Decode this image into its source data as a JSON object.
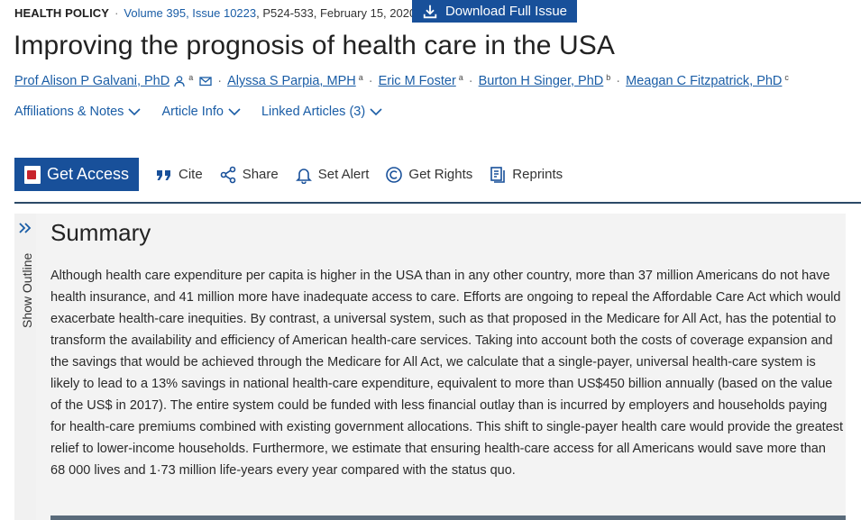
{
  "citation": {
    "section": "HEALTH POLICY",
    "separator": "·",
    "volume_issue": "Volume 395, Issue 10223",
    "pages_date": ", P524-533, February 15, 2020"
  },
  "download_button": {
    "label": "Download Full Issue",
    "icon": "download-icon"
  },
  "article": {
    "title": "Improving the prognosis of health care in the USA"
  },
  "authors": [
    {
      "name": "Prof Alison P Galvani, PhD",
      "sup": "a",
      "icons": [
        "person-icon",
        "mail-icon"
      ]
    },
    {
      "name": "Alyssa S Parpia, MPH",
      "sup": "a"
    },
    {
      "name": "Eric M Foster",
      "sup": "a"
    },
    {
      "name": "Burton H Singer, PhD",
      "sup": "b"
    },
    {
      "name": "Meagan C Fitzpatrick, PhD",
      "sup": "c"
    }
  ],
  "tabs": [
    {
      "label": "Affiliations & Notes",
      "icon": "chevron-down-icon"
    },
    {
      "label": "Article Info",
      "icon": "chevron-down-icon"
    },
    {
      "label": "Linked Articles (3)",
      "icon": "chevron-down-icon"
    }
  ],
  "actions": {
    "get_access": "Get Access",
    "cite": "Cite",
    "share": "Share",
    "set_alert": "Set Alert",
    "get_rights": "Get Rights",
    "reprints": "Reprints"
  },
  "outline": {
    "label": "Show Outline",
    "icon": "double-chevron-right-icon"
  },
  "summary": {
    "heading": "Summary",
    "text": "Although health care expenditure per capita is higher in the USA than in any other country, more than 37 million Americans do not have health insurance, and 41 million more have inadequate access to care. Efforts are ongoing to repeal the Affordable Care Act which would exacerbate health-care inequities. By contrast, a universal system, such as that proposed in the Medicare for All Act, has the potential to transform the availability and efficiency of American health-care services. Taking into account both the costs of coverage expansion and the savings that would be achieved through the Medicare for All Act, we calculate that a single-payer, universal health-care system is likely to lead to a 13% savings in national health-care expenditure, equivalent to more than US$450 billion annually (based on the value of the US$ in 2017). The entire system could be funded with less financial outlay than is incurred by employers and households paying for health-care premiums combined with existing government allocations. This shift to single-payer health care would provide the greatest relief to lower-income households. Furthermore, we estimate that ensuring health-care access for all Americans would save more than 68 000 lives and 1·73 million life-years every year compared with the status quo."
  },
  "colors": {
    "brand": "#18509a",
    "link": "#1a5da6",
    "rule": "#2c4a68",
    "panel": "#f3f3f3"
  }
}
